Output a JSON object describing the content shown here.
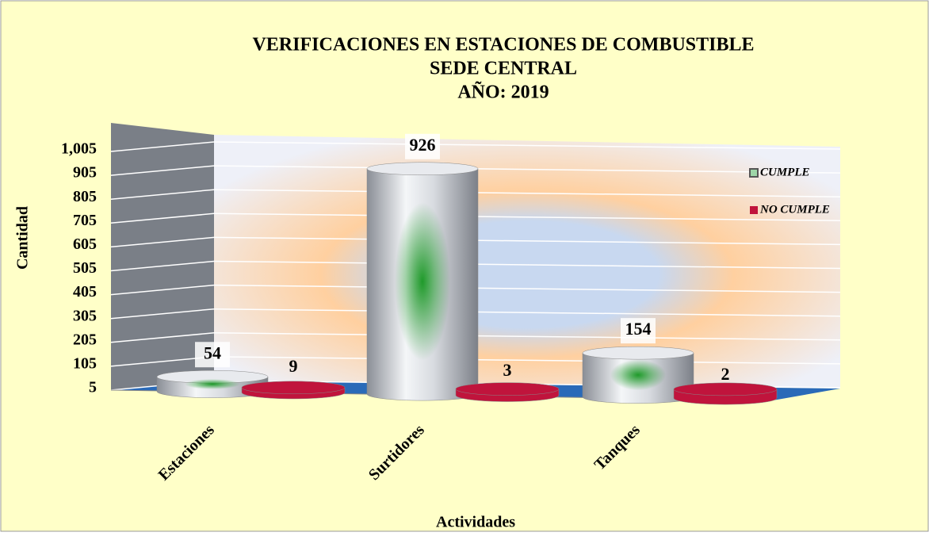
{
  "chart_data": {
    "type": "bar3d",
    "title": [
      "VERIFICACIONES EN ESTACIONES DE COMBUSTIBLE",
      "SEDE CENTRAL",
      "AÑO: 2019"
    ],
    "y_label": "Cantidad",
    "x_label": "Actividades",
    "categories": [
      "Estaciones",
      "Surtidores",
      "Tanques"
    ],
    "series": [
      {
        "name": "CUMPLE",
        "color": "#b8bcc4",
        "values": [
          54,
          926,
          154
        ]
      },
      {
        "name": "NO CUMPLE",
        "color": "#c0143c",
        "values": [
          9,
          3,
          2
        ]
      }
    ],
    "ylim": [
      5,
      1005
    ],
    "yticks": [
      5,
      105,
      205,
      305,
      405,
      505,
      605,
      705,
      805,
      905,
      {
        "value": 1005,
        "label": "1,005"
      }
    ],
    "grid": true,
    "legend": "right"
  }
}
